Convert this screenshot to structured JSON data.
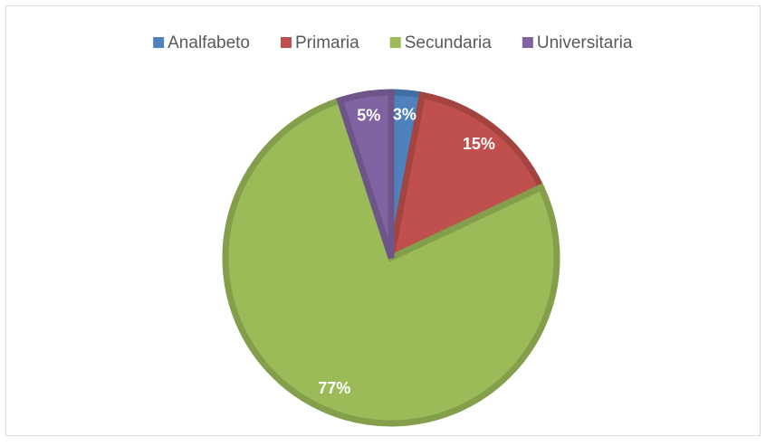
{
  "chart_data": {
    "type": "pie",
    "categories": [
      "Analfabeto",
      "Primaria",
      "Secundaria",
      "Universitaria"
    ],
    "values": [
      3,
      15,
      77,
      5
    ],
    "value_labels": [
      "3%",
      "15%",
      "77%",
      "5%"
    ],
    "colors": [
      "#4f81bd",
      "#c0504d",
      "#9bbb59",
      "#8064a2"
    ],
    "legend": "top"
  }
}
